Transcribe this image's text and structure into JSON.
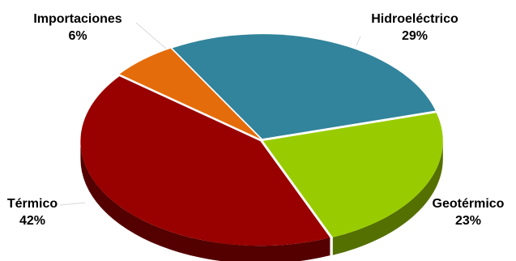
{
  "chart_data": {
    "type": "pie",
    "style": "3d",
    "legend": "none",
    "slices": [
      {
        "name": "Hidroeléctrico",
        "value": 29,
        "label": "29%",
        "color": "#31849b"
      },
      {
        "name": "Geotérmico",
        "value": 23,
        "label": "23%",
        "color": "#99cc00"
      },
      {
        "name": "Térmico",
        "value": 42,
        "label": "42%",
        "color": "#990000"
      },
      {
        "name": "Importaciones",
        "value": 6,
        "label": "6%",
        "color": "#e46c0a"
      }
    ]
  }
}
